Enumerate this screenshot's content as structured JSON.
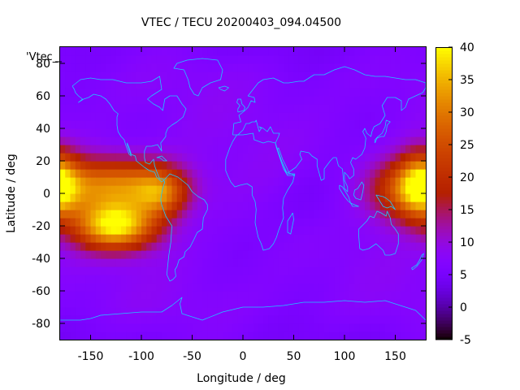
{
  "chart_data": {
    "type": "heatmap",
    "title": "VTEC / TECU 20200403_094.04500",
    "xlabel": "Longitude / deg",
    "ylabel": "Latitude / deg",
    "legend_key": "'Vtec_",
    "xlim": [
      -180,
      180
    ],
    "ylim": [
      -90,
      90
    ],
    "x_ticks": [
      -150,
      -100,
      -50,
      0,
      50,
      100,
      150
    ],
    "y_ticks": [
      -80,
      -60,
      -40,
      -20,
      0,
      20,
      40,
      60,
      80
    ],
    "colorbar": {
      "range": [
        -5,
        40
      ],
      "ticks": [
        -5,
        0,
        5,
        10,
        15,
        20,
        25,
        30,
        35,
        40
      ],
      "palette": "black-purple-red-orange-yellow"
    },
    "grid": false,
    "background_level_tecu": 7,
    "features": [
      {
        "name": "south-pacific-maximum",
        "lon": -125,
        "lat": -20,
        "peak_tecu": 38,
        "lon_half_width": 28,
        "lat_half_width": 10
      },
      {
        "name": "pacific-equatorial-band",
        "lon": -125,
        "lat": 5,
        "peak_tecu": 30,
        "lon_half_width": 42,
        "lat_half_width": 12
      },
      {
        "name": "eastern-pacific-arc",
        "lon": -80,
        "lat": 0,
        "peak_tecu": 22,
        "lon_half_width": 18,
        "lat_half_width": 10
      },
      {
        "name": "west-pacific-maximum",
        "lon": 165,
        "lat": 2,
        "peak_tecu": 27,
        "lon_half_width": 26,
        "lat_half_width": 13
      },
      {
        "name": "dateline-wrap",
        "lon": -185,
        "lat": 8,
        "peak_tecu": 22,
        "lon_half_width": 14,
        "lat_half_width": 14
      }
    ]
  }
}
